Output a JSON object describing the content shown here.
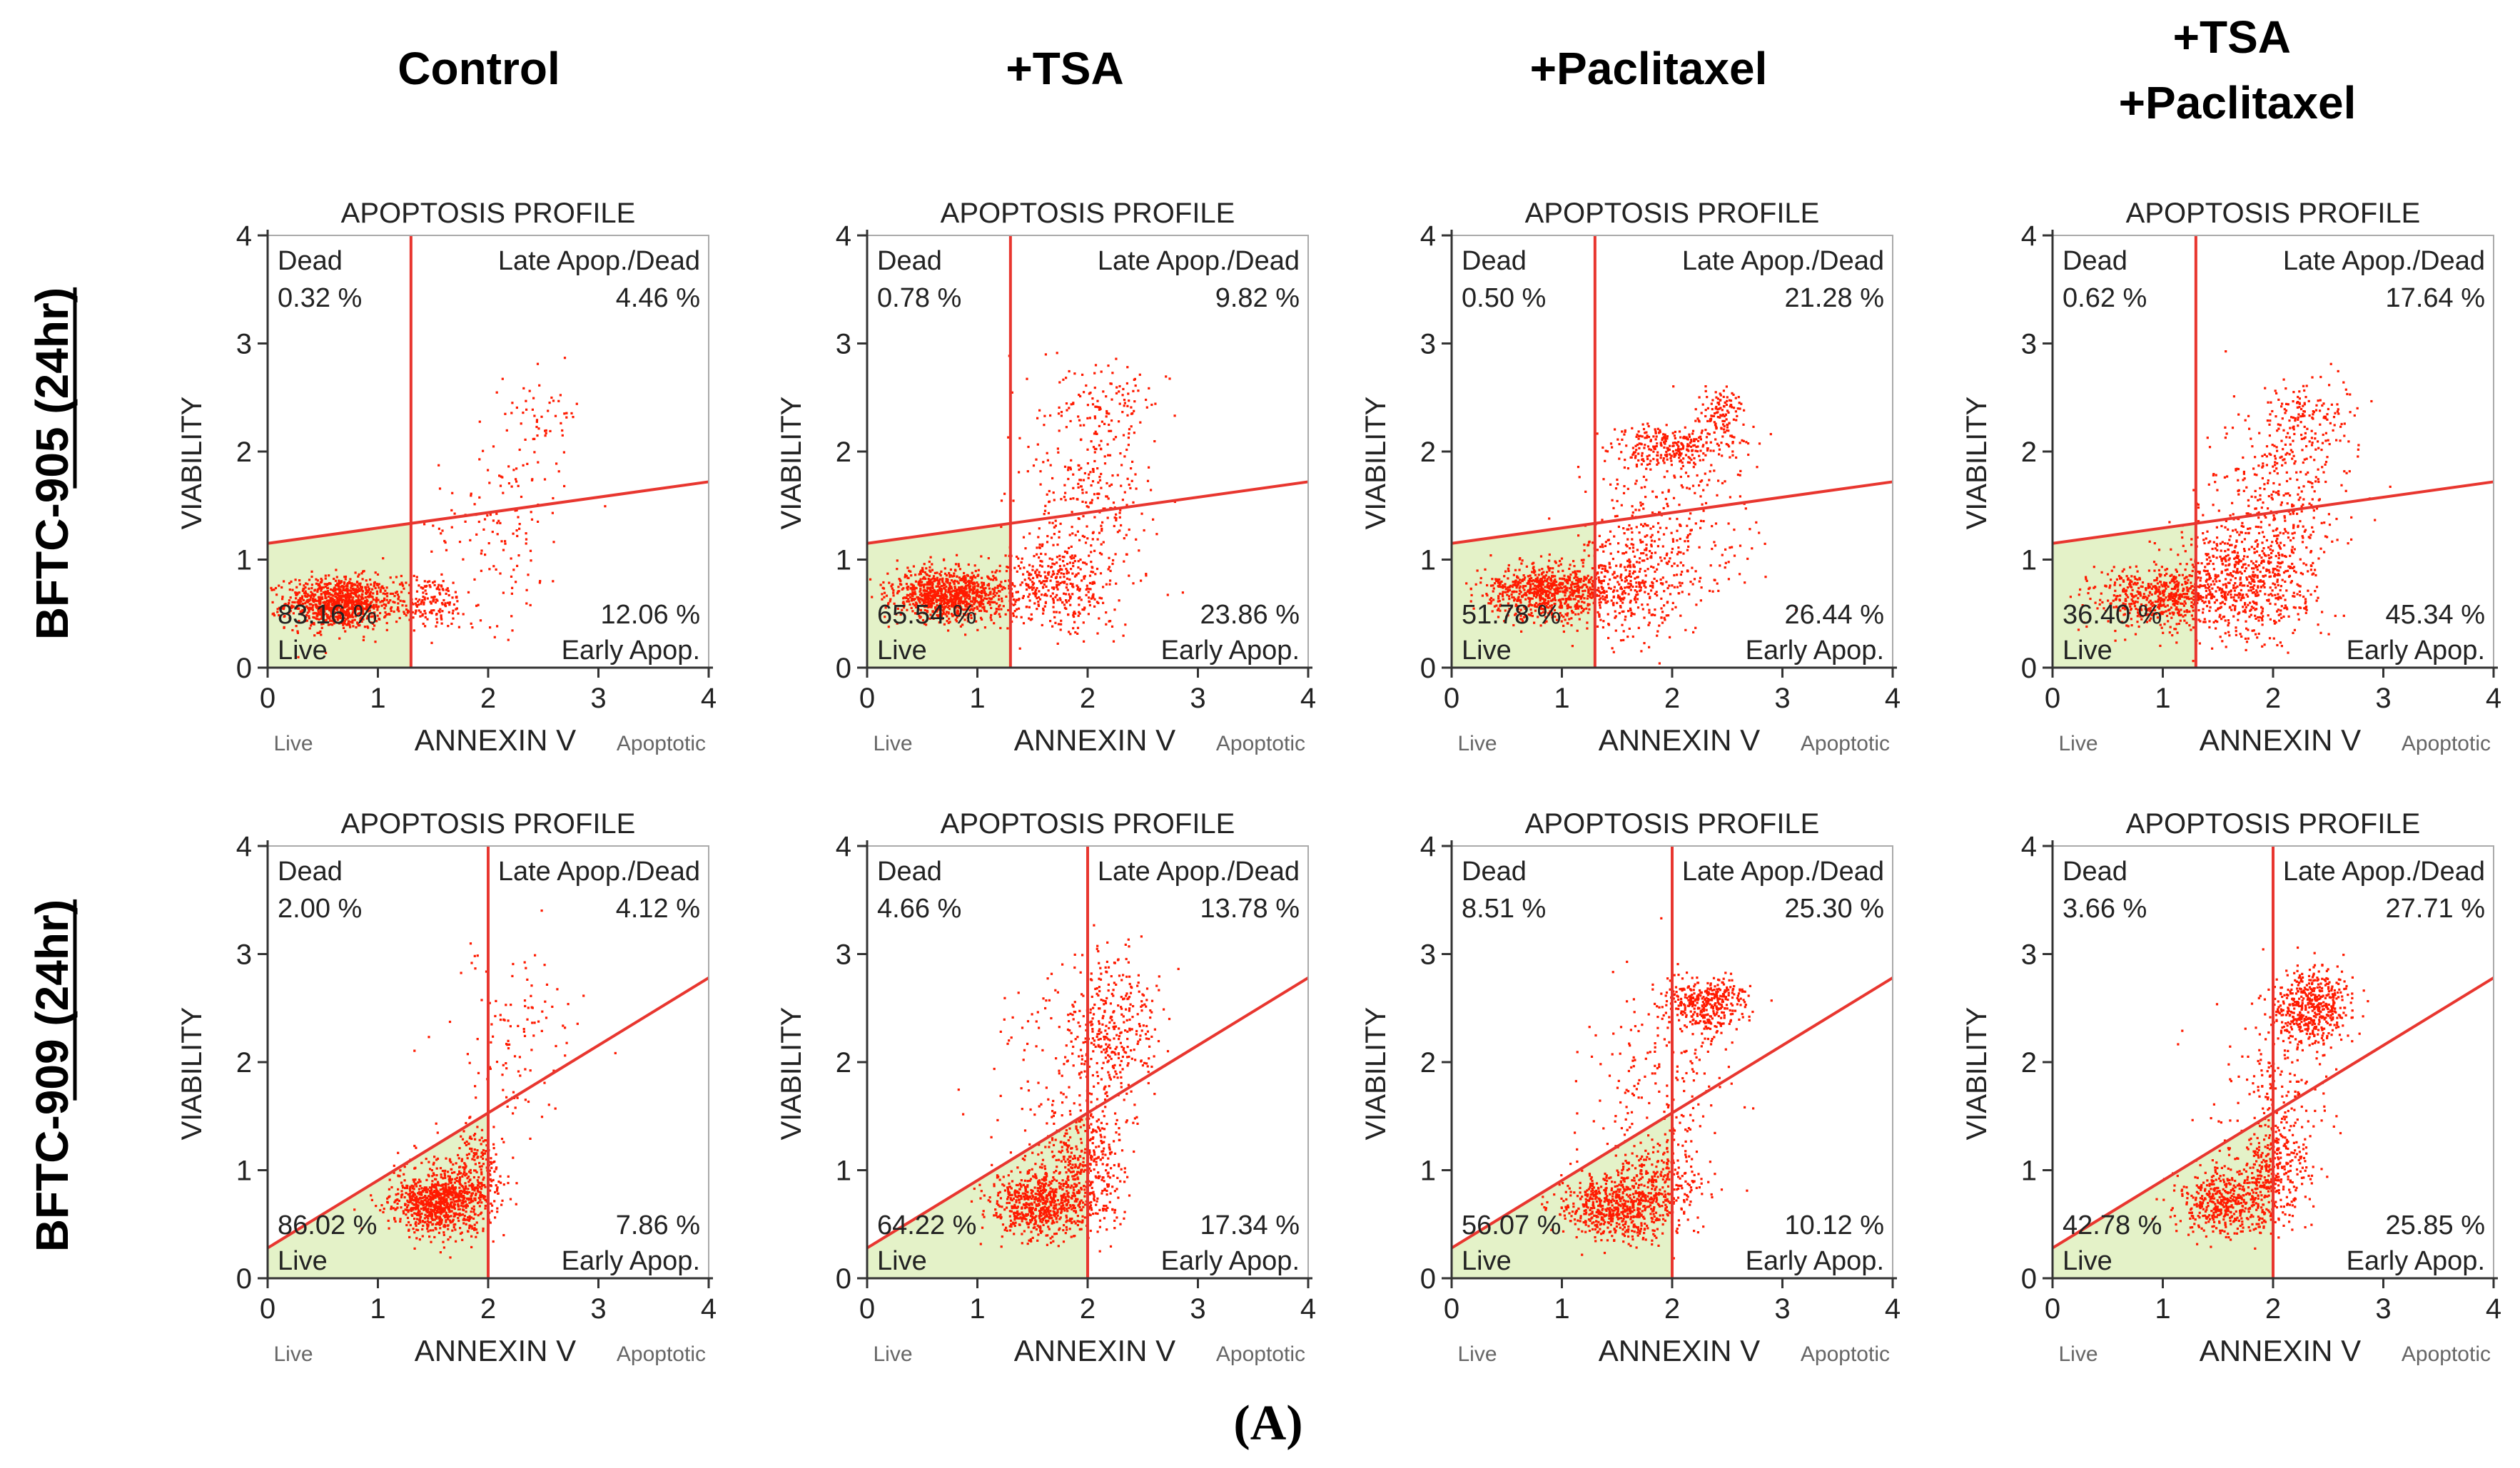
{
  "figure": {
    "panel_label": "(A)",
    "column_headers": [
      "Control",
      "+TSA",
      "+Paclitaxel",
      "+TSA\n+Paclitaxel"
    ],
    "row_headers": [
      "BFTC-905 (24hr)",
      "BFTC-909 (24hr)"
    ]
  },
  "colors": {
    "dots": "#ff1a00",
    "gate_lines": "#e8362f",
    "live_region": "#e4f2c8",
    "axis": "#333333"
  },
  "chart_data": [
    {
      "type": "scatter",
      "panel": "BFTC-905 Control",
      "title": "APOPTOSIS PROFILE",
      "xlabel": "ANNEXIN V",
      "ylabel": "VIABILITY",
      "x_left_label": "Live",
      "x_right_label": "Apoptotic",
      "xlim": [
        0,
        4
      ],
      "ylim": [
        0,
        4
      ],
      "xticks": [
        0,
        1,
        2,
        3,
        4
      ],
      "yticks": [
        0,
        1,
        2,
        3,
        4
      ],
      "gate_x": 1.3,
      "gate_line": [
        [
          0,
          1.15
        ],
        [
          4,
          1.72
        ]
      ],
      "quadrants": {
        "dead": {
          "label": "Dead",
          "value": "0.32 %"
        },
        "late": {
          "label": "Late Apop./Dead",
          "value": "4.46 %"
        },
        "live": {
          "label": "Live",
          "value": "83.16 %"
        },
        "early": {
          "label": "Early Apop.",
          "value": "12.06 %"
        }
      },
      "clusters": [
        {
          "cx": 0.65,
          "cy": 0.6,
          "sx": 0.24,
          "sy": 0.12,
          "n": 950
        },
        {
          "cx": 1.45,
          "cy": 0.6,
          "sx": 0.2,
          "sy": 0.12,
          "n": 170
        },
        {
          "cx": 2.1,
          "cy": 1.3,
          "sx": 0.3,
          "sy": 0.45,
          "n": 130
        },
        {
          "cx": 2.5,
          "cy": 2.35,
          "sx": 0.18,
          "sy": 0.2,
          "n": 55
        }
      ]
    },
    {
      "type": "scatter",
      "panel": "BFTC-905 +TSA",
      "title": "APOPTOSIS PROFILE",
      "xlabel": "ANNEXIN V",
      "ylabel": "VIABILITY",
      "x_left_label": "Live",
      "x_right_label": "Apoptotic",
      "xlim": [
        0,
        4
      ],
      "ylim": [
        0,
        4
      ],
      "xticks": [
        0,
        1,
        2,
        3,
        4
      ],
      "yticks": [
        0,
        1,
        2,
        3,
        4
      ],
      "gate_x": 1.3,
      "gate_line": [
        [
          0,
          1.15
        ],
        [
          4,
          1.72
        ]
      ],
      "quadrants": {
        "dead": {
          "label": "Dead",
          "value": "0.78 %"
        },
        "late": {
          "label": "Late Apop./Dead",
          "value": "9.82 %"
        },
        "live": {
          "label": "Live",
          "value": "65.54 %"
        },
        "early": {
          "label": "Early Apop.",
          "value": "23.86 %"
        }
      },
      "clusters": [
        {
          "cx": 0.75,
          "cy": 0.68,
          "sx": 0.26,
          "sy": 0.12,
          "n": 900
        },
        {
          "cx": 1.65,
          "cy": 0.75,
          "sx": 0.3,
          "sy": 0.2,
          "n": 380
        },
        {
          "cx": 2.0,
          "cy": 1.6,
          "sx": 0.3,
          "sy": 0.5,
          "n": 300
        },
        {
          "cx": 2.2,
          "cy": 2.45,
          "sx": 0.22,
          "sy": 0.15,
          "n": 90
        }
      ]
    },
    {
      "type": "scatter",
      "panel": "BFTC-905 +Paclitaxel",
      "title": "APOPTOSIS PROFILE",
      "xlabel": "ANNEXIN V",
      "ylabel": "VIABILITY",
      "x_left_label": "Live",
      "x_right_label": "Apoptotic",
      "xlim": [
        0,
        4
      ],
      "ylim": [
        0,
        4
      ],
      "xticks": [
        0,
        1,
        2,
        3,
        4
      ],
      "yticks": [
        0,
        1,
        2,
        3,
        4
      ],
      "gate_x": 1.3,
      "gate_line": [
        [
          0,
          1.15
        ],
        [
          4,
          1.72
        ]
      ],
      "quadrants": {
        "dead": {
          "label": "Dead",
          "value": "0.50 %"
        },
        "late": {
          "label": "Late Apop./Dead",
          "value": "21.28 %"
        },
        "live": {
          "label": "Live",
          "value": "51.78 %"
        },
        "early": {
          "label": "Early Apop.",
          "value": "26.44 %"
        }
      },
      "clusters": [
        {
          "cx": 0.85,
          "cy": 0.7,
          "sx": 0.28,
          "sy": 0.13,
          "n": 700
        },
        {
          "cx": 1.6,
          "cy": 0.8,
          "sx": 0.3,
          "sy": 0.25,
          "n": 420
        },
        {
          "cx": 2.0,
          "cy": 1.5,
          "sx": 0.35,
          "sy": 0.4,
          "n": 250
        },
        {
          "cx": 2.0,
          "cy": 2.05,
          "sx": 0.25,
          "sy": 0.1,
          "n": 240
        },
        {
          "cx": 2.45,
          "cy": 2.3,
          "sx": 0.1,
          "sy": 0.15,
          "n": 120
        }
      ]
    },
    {
      "type": "scatter",
      "panel": "BFTC-905 +TSA +Paclitaxel",
      "title": "APOPTOSIS PROFILE",
      "xlabel": "ANNEXIN V",
      "ylabel": "VIABILITY",
      "x_left_label": "Live",
      "x_right_label": "Apoptotic",
      "xlim": [
        0,
        4
      ],
      "ylim": [
        0,
        4
      ],
      "xticks": [
        0,
        1,
        2,
        3,
        4
      ],
      "yticks": [
        0,
        1,
        2,
        3,
        4
      ],
      "gate_x": 1.3,
      "gate_line": [
        [
          0,
          1.15
        ],
        [
          4,
          1.72
        ]
      ],
      "quadrants": {
        "dead": {
          "label": "Dead",
          "value": "0.62 %"
        },
        "late": {
          "label": "Late Apop./Dead",
          "value": "17.64 %"
        },
        "live": {
          "label": "Live",
          "value": "36.40 %"
        },
        "early": {
          "label": "Early Apop.",
          "value": "45.34 %"
        }
      },
      "clusters": [
        {
          "cx": 0.95,
          "cy": 0.65,
          "sx": 0.28,
          "sy": 0.13,
          "n": 520
        },
        {
          "cx": 1.75,
          "cy": 0.8,
          "sx": 0.32,
          "sy": 0.28,
          "n": 650
        },
        {
          "cx": 2.05,
          "cy": 1.6,
          "sx": 0.35,
          "sy": 0.45,
          "n": 330
        },
        {
          "cx": 2.3,
          "cy": 2.3,
          "sx": 0.2,
          "sy": 0.2,
          "n": 130
        }
      ]
    },
    {
      "type": "scatter",
      "panel": "BFTC-909 Control",
      "title": "APOPTOSIS PROFILE",
      "xlabel": "ANNEXIN V",
      "ylabel": "VIABILITY",
      "x_left_label": "Live",
      "x_right_label": "Apoptotic",
      "xlim": [
        0,
        4
      ],
      "ylim": [
        0,
        4
      ],
      "xticks": [
        0,
        1,
        2,
        3,
        4
      ],
      "yticks": [
        0,
        1,
        2,
        3,
        4
      ],
      "gate_x": 2.0,
      "gate_line": [
        [
          0,
          0.28
        ],
        [
          4,
          2.78
        ]
      ],
      "quadrants": {
        "dead": {
          "label": "Dead",
          "value": "2.00 %"
        },
        "late": {
          "label": "Late Apop./Dead",
          "value": "4.12 %"
        },
        "live": {
          "label": "Live",
          "value": "86.02 %"
        },
        "early": {
          "label": "Early Apop.",
          "value": "7.86 %"
        }
      },
      "clusters": [
        {
          "cx": 1.55,
          "cy": 0.7,
          "sx": 0.22,
          "sy": 0.15,
          "n": 850
        },
        {
          "cx": 1.9,
          "cy": 1.0,
          "sx": 0.15,
          "sy": 0.22,
          "n": 220
        },
        {
          "cx": 2.25,
          "cy": 2.2,
          "sx": 0.25,
          "sy": 0.45,
          "n": 110
        }
      ]
    },
    {
      "type": "scatter",
      "panel": "BFTC-909 +TSA",
      "title": "APOPTOSIS PROFILE",
      "xlabel": "ANNEXIN V",
      "ylabel": "VIABILITY",
      "x_left_label": "Live",
      "x_right_label": "Apoptotic",
      "xlim": [
        0,
        4
      ],
      "ylim": [
        0,
        4
      ],
      "xticks": [
        0,
        1,
        2,
        3,
        4
      ],
      "yticks": [
        0,
        1,
        2,
        3,
        4
      ],
      "gate_x": 2.0,
      "gate_line": [
        [
          0,
          0.28
        ],
        [
          4,
          2.78
        ]
      ],
      "quadrants": {
        "dead": {
          "label": "Dead",
          "value": "4.66 %"
        },
        "late": {
          "label": "Late Apop./Dead",
          "value": "13.78 %"
        },
        "live": {
          "label": "Live",
          "value": "64.22 %"
        },
        "early": {
          "label": "Early Apop.",
          "value": "17.34 %"
        }
      },
      "clusters": [
        {
          "cx": 1.55,
          "cy": 0.7,
          "sx": 0.22,
          "sy": 0.15,
          "n": 650
        },
        {
          "cx": 2.0,
          "cy": 1.05,
          "sx": 0.18,
          "sy": 0.28,
          "n": 380
        },
        {
          "cx": 2.2,
          "cy": 2.3,
          "sx": 0.22,
          "sy": 0.35,
          "n": 360
        },
        {
          "cx": 1.6,
          "cy": 1.8,
          "sx": 0.3,
          "sy": 0.45,
          "n": 90
        }
      ]
    },
    {
      "type": "scatter",
      "panel": "BFTC-909 +Paclitaxel",
      "title": "APOPTOSIS PROFILE",
      "xlabel": "ANNEXIN V",
      "ylabel": "VIABILITY",
      "x_left_label": "Live",
      "x_right_label": "Apoptotic",
      "xlim": [
        0,
        4
      ],
      "ylim": [
        0,
        4
      ],
      "xticks": [
        0,
        1,
        2,
        3,
        4
      ],
      "yticks": [
        0,
        1,
        2,
        3,
        4
      ],
      "gate_x": 2.0,
      "gate_line": [
        [
          0,
          0.28
        ],
        [
          4,
          2.78
        ]
      ],
      "quadrants": {
        "dead": {
          "label": "Dead",
          "value": "8.51 %"
        },
        "late": {
          "label": "Late Apop./Dead",
          "value": "25.30 %"
        },
        "live": {
          "label": "Live",
          "value": "56.07 %"
        },
        "early": {
          "label": "Early Apop.",
          "value": "10.12 %"
        }
      },
      "clusters": [
        {
          "cx": 1.5,
          "cy": 0.65,
          "sx": 0.25,
          "sy": 0.15,
          "n": 600
        },
        {
          "cx": 1.85,
          "cy": 0.9,
          "sx": 0.2,
          "sy": 0.22,
          "n": 260
        },
        {
          "cx": 2.3,
          "cy": 2.55,
          "sx": 0.18,
          "sy": 0.12,
          "n": 380
        },
        {
          "cx": 1.9,
          "cy": 1.8,
          "sx": 0.35,
          "sy": 0.45,
          "n": 180
        }
      ]
    },
    {
      "type": "scatter",
      "panel": "BFTC-909 +TSA +Paclitaxel",
      "title": "APOPTOSIS PROFILE",
      "xlabel": "ANNEXIN V",
      "ylabel": "VIABILITY",
      "x_left_label": "Live",
      "x_right_label": "Apoptotic",
      "xlim": [
        0,
        4
      ],
      "ylim": [
        0,
        4
      ],
      "xticks": [
        0,
        1,
        2,
        3,
        4
      ],
      "yticks": [
        0,
        1,
        2,
        3,
        4
      ],
      "gate_x": 2.0,
      "gate_line": [
        [
          0,
          0.28
        ],
        [
          4,
          2.78
        ]
      ],
      "quadrants": {
        "dead": {
          "label": "Dead",
          "value": "3.66 %"
        },
        "late": {
          "label": "Late Apop./Dead",
          "value": "27.71 %"
        },
        "live": {
          "label": "Live",
          "value": "42.78 %"
        },
        "early": {
          "label": "Early Apop.",
          "value": "25.85 %"
        }
      },
      "clusters": [
        {
          "cx": 1.55,
          "cy": 0.7,
          "sx": 0.22,
          "sy": 0.15,
          "n": 450
        },
        {
          "cx": 2.0,
          "cy": 1.0,
          "sx": 0.18,
          "sy": 0.25,
          "n": 350
        },
        {
          "cx": 2.35,
          "cy": 2.5,
          "sx": 0.18,
          "sy": 0.18,
          "n": 500
        },
        {
          "cx": 2.05,
          "cy": 1.7,
          "sx": 0.3,
          "sy": 0.4,
          "n": 150
        }
      ]
    }
  ]
}
